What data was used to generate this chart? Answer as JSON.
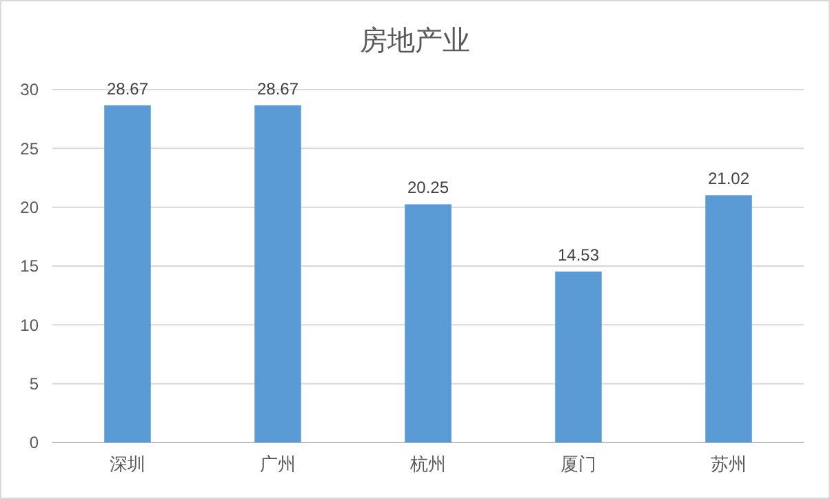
{
  "chart_data": {
    "type": "bar",
    "title": "房地产业",
    "categories": [
      "深圳",
      "广州",
      "杭州",
      "厦门",
      "苏州"
    ],
    "values": [
      28.67,
      28.67,
      20.25,
      14.53,
      21.02
    ],
    "color": "#5b9bd5",
    "ylim": [
      0,
      30
    ],
    "yticks": [
      0,
      5,
      10,
      15,
      20,
      25,
      30
    ],
    "grid": "y",
    "data_labels": true
  }
}
